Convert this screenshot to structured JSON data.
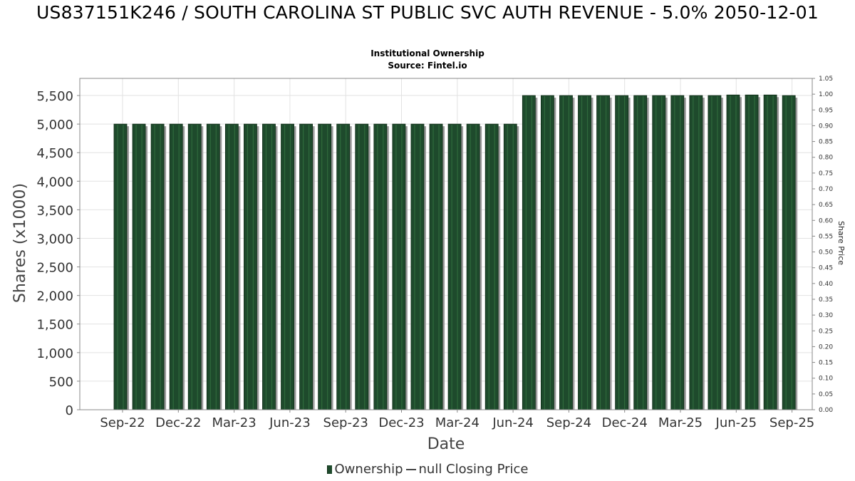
{
  "title": "US837151K246 / SOUTH CAROLINA ST PUBLIC SVC AUTH REVENUE - 5.0% 2050-12-01",
  "subtitle1": "Institutional Ownership",
  "subtitle2": "Source: Fintel.io",
  "colors": {
    "bar_fill": "#1e4a2c",
    "bar_stripe": "#2f6a3c",
    "bar_shadow": "#9a9a9a",
    "grid": "#e2e2e2",
    "frame": "#888888"
  },
  "legend": {
    "ownership_label": "Ownership",
    "price_label": "null Closing Price"
  },
  "chart_data": {
    "type": "bar",
    "title": "US837151K246 / SOUTH CAROLINA ST PUBLIC SVC AUTH REVENUE - 5.0% 2050-12-01",
    "xlabel": "Date",
    "ylabel": "Shares (x1000)",
    "y2label": "Share Price",
    "x_ticks": [
      "Sep-22",
      "Dec-22",
      "Mar-23",
      "Jun-23",
      "Sep-23",
      "Dec-23",
      "Mar-24",
      "Jun-24",
      "Sep-24",
      "Dec-24",
      "Mar-25",
      "Jun-25",
      "Sep-25"
    ],
    "ylim": [
      0,
      5800
    ],
    "y_ticks": [
      0,
      500,
      1000,
      1500,
      2000,
      2500,
      3000,
      3500,
      4000,
      4500,
      5000,
      5500
    ],
    "y_tick_labels": [
      "0",
      "500",
      "1,000",
      "1,500",
      "2,000",
      "2,500",
      "3,000",
      "3,500",
      "4,000",
      "4,500",
      "5,000",
      "5,500"
    ],
    "y2lim": [
      0,
      1.05
    ],
    "y2_ticks": [
      0,
      0.05,
      0.1,
      0.15,
      0.2,
      0.25,
      0.3,
      0.35,
      0.4,
      0.45,
      0.5,
      0.55,
      0.6,
      0.65,
      0.7,
      0.75,
      0.8,
      0.85,
      0.9,
      0.95,
      1.0,
      1.05
    ],
    "y2_tick_labels": [
      "0.00",
      "0.05",
      "0.10",
      "0.15",
      "0.20",
      "0.25",
      "0.30",
      "0.35",
      "0.40",
      "0.45",
      "0.50",
      "0.55",
      "0.60",
      "0.65",
      "0.70",
      "0.75",
      "0.80",
      "0.85",
      "0.90",
      "0.95",
      "1.00",
      "1.05"
    ],
    "grid": true,
    "legend_position": "bottom",
    "series": [
      {
        "name": "Ownership",
        "values": [
          5000,
          5000,
          5000,
          5000,
          5000,
          5000,
          5000,
          5000,
          5000,
          5000,
          5000,
          5000,
          5000,
          5000,
          5000,
          5000,
          5000,
          5000,
          5000,
          5000,
          5000,
          5000,
          5500,
          5500,
          5500,
          5500,
          5500,
          5500,
          5500,
          5500,
          5500,
          5500,
          5500,
          5510,
          5510,
          5510,
          5500
        ]
      }
    ]
  }
}
